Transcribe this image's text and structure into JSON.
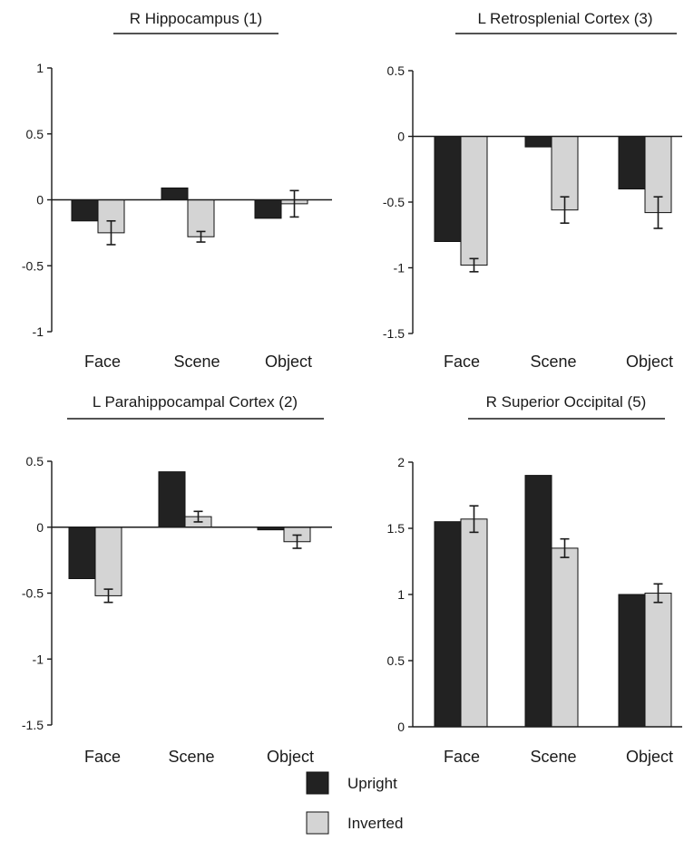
{
  "chart_data": [
    {
      "type": "bar",
      "title": "R Hippocampus (1)",
      "categories": [
        "Face",
        "Scene",
        "Object"
      ],
      "ylim": [
        -1,
        1
      ],
      "yticks": [
        1,
        0.5,
        0,
        -0.5,
        -1
      ],
      "ytick_labels": [
        "1",
        "0.5",
        "0",
        "-0.5",
        "-1"
      ],
      "series": [
        {
          "name": "Upright",
          "values": [
            -0.16,
            0.09,
            -0.14
          ]
        },
        {
          "name": "Inverted",
          "values": [
            -0.25,
            -0.28,
            -0.03
          ],
          "errors": [
            0.09,
            0.04,
            0.1
          ]
        }
      ]
    },
    {
      "type": "bar",
      "title": "L Retrosplenial Cortex (3)",
      "categories": [
        "Face",
        "Scene",
        "Object"
      ],
      "ylim": [
        -1.5,
        0.5
      ],
      "yticks": [
        0.5,
        0,
        -0.5,
        -1,
        -1.5
      ],
      "ytick_labels": [
        "0.5",
        "0",
        "-0.5",
        "-1",
        "-1.5"
      ],
      "series": [
        {
          "name": "Upright",
          "values": [
            -0.8,
            -0.08,
            -0.4
          ]
        },
        {
          "name": "Inverted",
          "values": [
            -0.98,
            -0.56,
            -0.58
          ],
          "errors": [
            0.05,
            0.1,
            0.12
          ]
        }
      ]
    },
    {
      "type": "bar",
      "title": "L Parahippocampal Cortex (2)",
      "categories": [
        "Face",
        "Scene",
        "Object"
      ],
      "ylim": [
        -1.5,
        0.5
      ],
      "yticks": [
        0.5,
        0,
        -0.5,
        -1,
        -1.5
      ],
      "ytick_labels": [
        "0.5",
        "0",
        "-0.5",
        "-1",
        "-1.5"
      ],
      "series": [
        {
          "name": "Upright",
          "values": [
            -0.39,
            0.42,
            -0.02
          ]
        },
        {
          "name": "Inverted",
          "values": [
            -0.52,
            0.08,
            -0.11
          ],
          "errors": [
            0.05,
            0.04,
            0.05
          ]
        }
      ]
    },
    {
      "type": "bar",
      "title": "R Superior Occipital (5)",
      "categories": [
        "Face",
        "Scene",
        "Object"
      ],
      "ylim": [
        0,
        2
      ],
      "yticks": [
        2,
        1.5,
        1,
        0.5,
        0
      ],
      "ytick_labels": [
        "2",
        "1.5",
        "1",
        "0.5",
        "0"
      ],
      "series": [
        {
          "name": "Upright",
          "values": [
            1.55,
            1.9,
            1.0
          ]
        },
        {
          "name": "Inverted",
          "values": [
            1.57,
            1.35,
            1.01
          ],
          "errors": [
            0.1,
            0.07,
            0.07
          ]
        }
      ]
    }
  ],
  "legend": {
    "position": "bottom-center",
    "items": [
      {
        "label": "Upright",
        "color": "#222222"
      },
      {
        "label": "Inverted",
        "color": "#d4d4d4"
      }
    ]
  }
}
